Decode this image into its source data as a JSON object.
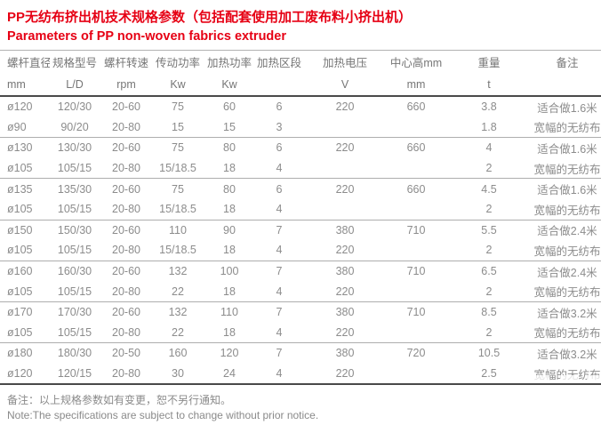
{
  "title": {
    "zh": "PP无纺布挤出机技术规格参数（包括配套使用加工废布料小挤出机）",
    "en": "Parameters of PP non-woven fabrics extruder"
  },
  "table": {
    "headers": [
      {
        "label": "螺杆直径",
        "unit": "mm"
      },
      {
        "label": "规格型号",
        "unit": "L/D"
      },
      {
        "label": "螺杆转速",
        "unit": "rpm"
      },
      {
        "label": "传动功率",
        "unit": "Kw"
      },
      {
        "label": "加热功率",
        "unit": "Kw"
      },
      {
        "label": "加热区段",
        "unit": ""
      },
      {
        "label": "加热电压",
        "unit": "V"
      },
      {
        "label": "中心高mm",
        "unit": "mm"
      },
      {
        "label": "重量",
        "unit": "t"
      },
      {
        "label": "备注",
        "unit": ""
      }
    ],
    "rows": [
      [
        "ø120",
        "120/30",
        "20-60",
        "75",
        "60",
        "6",
        "220",
        "660",
        "3.8",
        "适合做1.6米"
      ],
      [
        "ø90",
        "90/20",
        "20-80",
        "15",
        "15",
        "3",
        "",
        "",
        "1.8",
        "宽幅的无纺布"
      ],
      [
        "ø130",
        "130/30",
        "20-60",
        "75",
        "80",
        "6",
        "220",
        "660",
        "4",
        "适合做1.6米"
      ],
      [
        "ø105",
        "105/15",
        "20-80",
        "15/18.5",
        "18",
        "4",
        "",
        "",
        "2",
        "宽幅的无纺布"
      ],
      [
        "ø135",
        "135/30",
        "20-60",
        "75",
        "80",
        "6",
        "220",
        "660",
        "4.5",
        "适合做1.6米"
      ],
      [
        "ø105",
        "105/15",
        "20-80",
        "15/18.5",
        "18",
        "4",
        "",
        "",
        "2",
        "宽幅的无纺布"
      ],
      [
        "ø150",
        "150/30",
        "20-60",
        "110",
        "90",
        "7",
        "380",
        "710",
        "5.5",
        "适合做2.4米"
      ],
      [
        "ø105",
        "105/15",
        "20-80",
        "15/18.5",
        "18",
        "4",
        "220",
        "",
        "2",
        "宽幅的无纺布"
      ],
      [
        "ø160",
        "160/30",
        "20-60",
        "132",
        "100",
        "7",
        "380",
        "710",
        "6.5",
        "适合做2.4米"
      ],
      [
        "ø105",
        "105/15",
        "20-80",
        "22",
        "18",
        "4",
        "220",
        "",
        "2",
        "宽幅的无纺布"
      ],
      [
        "ø170",
        "170/30",
        "20-60",
        "132",
        "110",
        "7",
        "380",
        "710",
        "8.5",
        "适合做3.2米"
      ],
      [
        "ø105",
        "105/15",
        "20-80",
        "22",
        "18",
        "4",
        "220",
        "",
        "2",
        "宽幅的无纺布"
      ],
      [
        "ø180",
        "180/30",
        "20-50",
        "160",
        "120",
        "7",
        "380",
        "720",
        "10.5",
        "适合做3.2米"
      ],
      [
        "ø120",
        "120/15",
        "20-80",
        "30",
        "24",
        "4",
        "220",
        "",
        "2.5",
        "宽幅的无纺布"
      ]
    ]
  },
  "footer": {
    "note_zh": "备注：以上规格参数如有变更，恕不另行通知。",
    "note_en": "Note:The specifications are subject to change without prior notice."
  },
  "colors": {
    "accent_red": "#e60014",
    "body_text_gray": "#8c8c8c",
    "header_text_gray": "#767676",
    "rule_dark": "#4a4a4a",
    "rule_light": "#aeaeae"
  }
}
